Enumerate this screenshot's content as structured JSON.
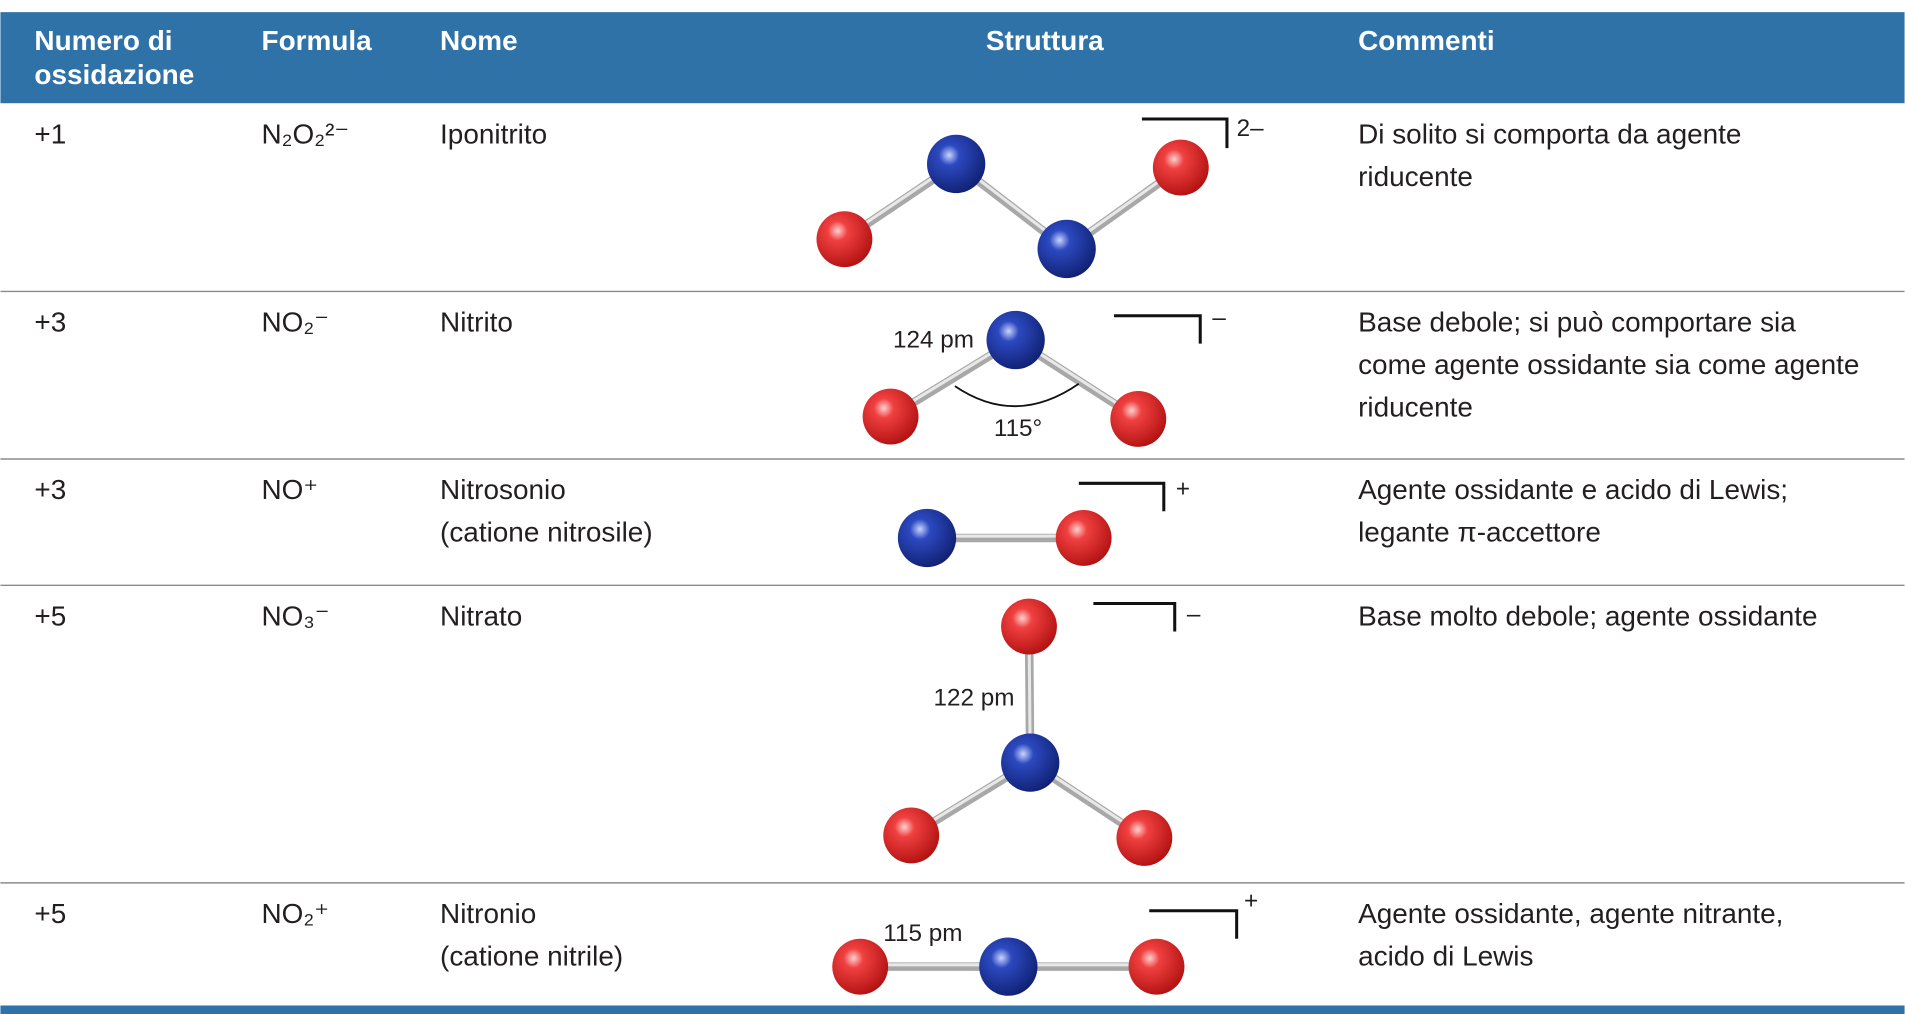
{
  "table": {
    "header": [
      [
        "Numero di",
        "ossidazione"
      ],
      [
        "Formula"
      ],
      [
        "Nome"
      ],
      [
        "Struttura"
      ],
      [
        "Commenti"
      ]
    ],
    "rows": [
      {
        "oxidation": "+1",
        "formula": "N₂O₂²⁻",
        "name": [
          "Iponitrito"
        ],
        "structure": {
          "charge": "2–",
          "labels": []
        },
        "comment": [
          "Di solito si comporta da agente",
          "riducente"
        ]
      },
      {
        "oxidation": "+3",
        "formula": "NO₂⁻",
        "name": [
          "Nitrito"
        ],
        "structure": {
          "charge": "–",
          "labels": [
            "124 pm",
            "115°"
          ]
        },
        "comment": [
          "Base debole; si può comportare sia",
          "come agente ossidante sia come agente",
          "riducente"
        ]
      },
      {
        "oxidation": "+3",
        "formula": "NO⁺",
        "name": [
          "Nitrosonio",
          "(catione nitrosile)"
        ],
        "structure": {
          "charge": "+",
          "labels": []
        },
        "comment": [
          "Agente ossidante e acido di Lewis;",
          "legante π-accettore"
        ]
      },
      {
        "oxidation": "+5",
        "formula": "NO₃⁻",
        "name": [
          "Nitrato"
        ],
        "structure": {
          "charge": "–",
          "labels": [
            "122 pm"
          ]
        },
        "comment": [
          "Base molto debole; agente ossidante"
        ]
      },
      {
        "oxidation": "+5",
        "formula": "NO₂⁺",
        "name": [
          "Nitronio",
          "(catione nitrile)"
        ],
        "structure": {
          "charge": "+",
          "labels": [
            "115 pm"
          ]
        },
        "comment": [
          "Agente ossidante, agente nitrante,",
          "acido di Lewis"
        ]
      }
    ]
  }
}
